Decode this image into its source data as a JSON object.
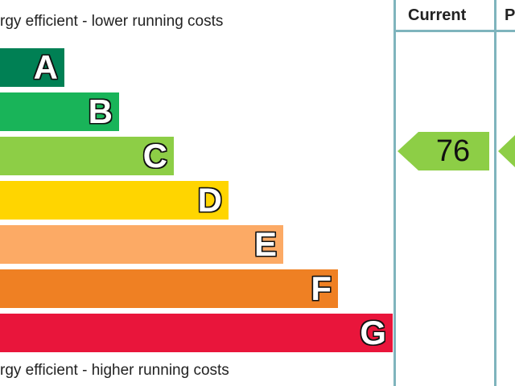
{
  "captions": {
    "top": "rgy efficient - lower running costs",
    "bottom": "rgy efficient - higher running costs"
  },
  "columns": {
    "current": "Current",
    "potential": "P"
  },
  "chart_data": {
    "type": "bar",
    "categories": [
      "A",
      "B",
      "C",
      "D",
      "E",
      "F",
      "G"
    ],
    "colors": [
      "#008054",
      "#19b459",
      "#8dce46",
      "#ffd500",
      "#fcaa65",
      "#ef8023",
      "#e9153b"
    ],
    "current_rating": {
      "value": "76",
      "band": "C",
      "color": "#8dce46"
    },
    "potential_rating": {
      "band": "C",
      "color": "#8dce46"
    }
  }
}
